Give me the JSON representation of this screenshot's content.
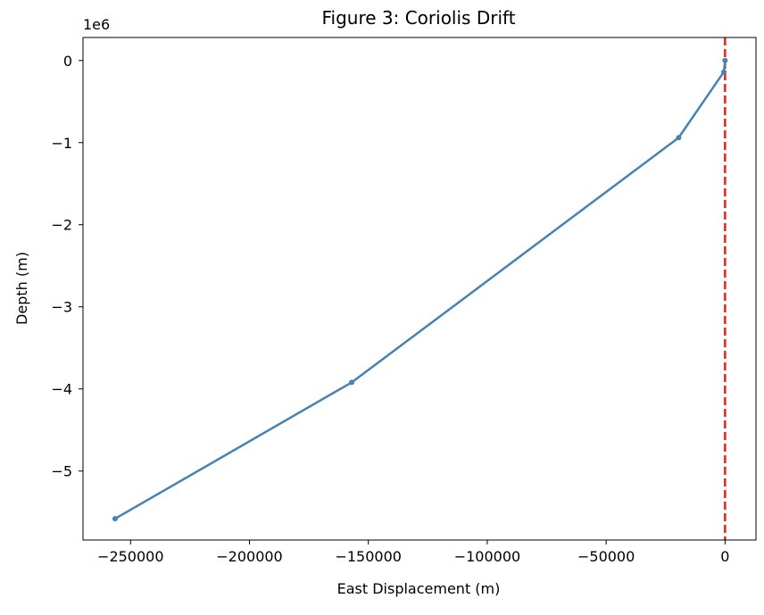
{
  "chart_data": {
    "type": "line",
    "title": "Figure 3: Coriolis Drift",
    "xlabel": "East Displacement (m)",
    "ylabel": "Depth (m)",
    "y_offset_label": "1e6",
    "y_multiplier": 1000000,
    "xlim": [
      -270000,
      13000
    ],
    "ylim": [
      -5840000,
      280000
    ],
    "grid": false,
    "x_ticks": [
      {
        "value": -250000,
        "label": "−250000"
      },
      {
        "value": -200000,
        "label": "−200000"
      },
      {
        "value": -150000,
        "label": "−150000"
      },
      {
        "value": -100000,
        "label": "−100000"
      },
      {
        "value": -50000,
        "label": "−50000"
      },
      {
        "value": 0,
        "label": "0"
      }
    ],
    "y_ticks": [
      {
        "value": 0,
        "label": "0"
      },
      {
        "value": -1000000,
        "label": "−1"
      },
      {
        "value": -2000000,
        "label": "−2"
      },
      {
        "value": -3000000,
        "label": "−3"
      },
      {
        "value": -4000000,
        "label": "−4"
      },
      {
        "value": -5000000,
        "label": "−5"
      }
    ],
    "series": [
      {
        "color": "#4682b4",
        "marker": "dot",
        "points": [
          {
            "x": 0,
            "y": 0
          },
          {
            "x": -500,
            "y": -140000
          },
          {
            "x": -19500,
            "y": -940000
          },
          {
            "x": -157000,
            "y": -3920000
          },
          {
            "x": -256500,
            "y": -5580000
          }
        ]
      }
    ],
    "reference_lines": [
      {
        "orientation": "vertical",
        "x": 0,
        "style": "dashed",
        "color": "#e8221a"
      }
    ]
  }
}
